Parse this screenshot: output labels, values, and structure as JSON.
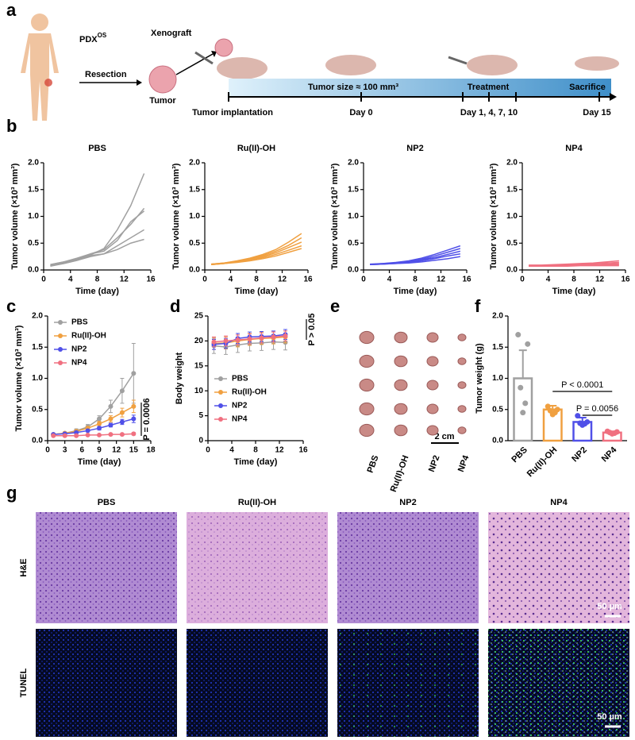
{
  "panels": [
    "a",
    "b",
    "c",
    "d",
    "e",
    "f",
    "g"
  ],
  "schematic": {
    "patient": "PDX",
    "patient_sup": "OS",
    "xenograft": "Xenograft",
    "resection": "Resection",
    "tumor": "Tumor",
    "banner": "Tumor size ≈ 100 mm³",
    "treatment": "Treatment",
    "sacrifice": "Sacrifice",
    "timeline": [
      "Tumor implantation",
      "Day 0",
      "Day 1, 4, 7, 10",
      "Day 15"
    ]
  },
  "chart_data": [
    {
      "type": "line",
      "title": "PBS",
      "xlabel": "Time (day)",
      "ylabel": "Tumor volume (×10³ mm³)",
      "x": [
        1,
        3,
        5,
        7,
        9,
        11,
        13,
        15
      ],
      "xlim": [
        0,
        16
      ],
      "xticks": [
        0,
        4,
        8,
        12,
        16
      ],
      "ylim": [
        0,
        2
      ],
      "yticks": [
        {
          "value": 0,
          "label": "0.0"
        },
        0.5,
        {
          "value": 1,
          "label": "1.0"
        },
        1.5,
        {
          "value": 2,
          "label": "2.0"
        }
      ],
      "series": [
        {
          "color": "#a0a0a0",
          "values": [
            0.1,
            0.15,
            0.2,
            0.28,
            0.4,
            0.75,
            1.2,
            1.8
          ]
        },
        {
          "color": "#a0a0a0",
          "values": [
            0.08,
            0.13,
            0.2,
            0.3,
            0.38,
            0.6,
            0.85,
            1.15
          ]
        },
        {
          "color": "#a0a0a0",
          "values": [
            0.1,
            0.15,
            0.22,
            0.3,
            0.35,
            0.55,
            0.9,
            1.1
          ]
        },
        {
          "color": "#a0a0a0",
          "values": [
            0.07,
            0.12,
            0.18,
            0.27,
            0.3,
            0.45,
            0.6,
            0.75
          ]
        },
        {
          "color": "#a0a0a0",
          "values": [
            0.08,
            0.12,
            0.18,
            0.25,
            0.3,
            0.38,
            0.5,
            0.57
          ]
        }
      ]
    },
    {
      "type": "line",
      "title": "Ru(II)-OH",
      "xlabel": "Time (day)",
      "ylabel": "Tumor volume (×10³ mm³)",
      "x": [
        1,
        3,
        5,
        7,
        9,
        11,
        13,
        15
      ],
      "xlim": [
        0,
        16
      ],
      "xticks": [
        0,
        4,
        8,
        12,
        16
      ],
      "ylim": [
        0,
        2
      ],
      "yticks": [
        {
          "value": 0,
          "label": "0.0"
        },
        0.5,
        {
          "value": 1,
          "label": "1.0"
        },
        1.5,
        {
          "value": 2,
          "label": "2.0"
        }
      ],
      "series": [
        {
          "color": "#f0a040",
          "values": [
            0.11,
            0.13,
            0.17,
            0.22,
            0.29,
            0.38,
            0.52,
            0.68
          ]
        },
        {
          "color": "#f0a040",
          "values": [
            0.1,
            0.12,
            0.16,
            0.21,
            0.27,
            0.35,
            0.46,
            0.6
          ]
        },
        {
          "color": "#f0a040",
          "values": [
            0.11,
            0.13,
            0.16,
            0.2,
            0.25,
            0.32,
            0.42,
            0.52
          ]
        },
        {
          "color": "#f0a040",
          "values": [
            0.1,
            0.12,
            0.15,
            0.19,
            0.23,
            0.29,
            0.37,
            0.45
          ]
        },
        {
          "color": "#f0a040",
          "values": [
            0.1,
            0.12,
            0.14,
            0.17,
            0.21,
            0.26,
            0.33,
            0.4
          ]
        }
      ]
    },
    {
      "type": "line",
      "title": "NP2",
      "xlabel": "Time (day)",
      "ylabel": "Tumor volume (×10³ mm³)",
      "x": [
        1,
        3,
        5,
        7,
        9,
        11,
        13,
        15
      ],
      "xlim": [
        0,
        16
      ],
      "xticks": [
        0,
        4,
        8,
        12,
        16
      ],
      "ylim": [
        0,
        2
      ],
      "yticks": [
        {
          "value": 0,
          "label": "0.0"
        },
        0.5,
        {
          "value": 1,
          "label": "1.0"
        },
        1.5,
        {
          "value": 2,
          "label": "2.0"
        }
      ],
      "series": [
        {
          "color": "#5050e8",
          "values": [
            0.11,
            0.12,
            0.14,
            0.17,
            0.22,
            0.29,
            0.37,
            0.45
          ]
        },
        {
          "color": "#5050e8",
          "values": [
            0.1,
            0.12,
            0.13,
            0.16,
            0.2,
            0.26,
            0.33,
            0.4
          ]
        },
        {
          "color": "#5050e8",
          "values": [
            0.1,
            0.11,
            0.13,
            0.15,
            0.19,
            0.23,
            0.29,
            0.35
          ]
        },
        {
          "color": "#5050e8",
          "values": [
            0.1,
            0.11,
            0.12,
            0.14,
            0.17,
            0.21,
            0.26,
            0.3
          ]
        },
        {
          "color": "#5050e8",
          "values": [
            0.1,
            0.11,
            0.12,
            0.13,
            0.15,
            0.18,
            0.21,
            0.25
          ]
        }
      ]
    },
    {
      "type": "line",
      "title": "NP4",
      "xlabel": "Time (day)",
      "ylabel": "Tumor volume (×10³ mm³)",
      "x": [
        1,
        3,
        5,
        7,
        9,
        11,
        13,
        15
      ],
      "xlim": [
        0,
        16
      ],
      "xticks": [
        0,
        4,
        8,
        12,
        16
      ],
      "ylim": [
        0,
        2
      ],
      "yticks": [
        {
          "value": 0,
          "label": "0.0"
        },
        0.5,
        {
          "value": 1,
          "label": "1.0"
        },
        1.5,
        {
          "value": 2,
          "label": "2.0"
        }
      ],
      "series": [
        {
          "color": "#f07080",
          "values": [
            0.09,
            0.09,
            0.1,
            0.11,
            0.12,
            0.13,
            0.15,
            0.17
          ]
        },
        {
          "color": "#f07080",
          "values": [
            0.08,
            0.08,
            0.09,
            0.1,
            0.11,
            0.12,
            0.13,
            0.14
          ]
        },
        {
          "color": "#f07080",
          "values": [
            0.08,
            0.08,
            0.08,
            0.09,
            0.1,
            0.1,
            0.11,
            0.12
          ]
        },
        {
          "color": "#f07080",
          "values": [
            0.07,
            0.07,
            0.08,
            0.08,
            0.09,
            0.09,
            0.1,
            0.1
          ]
        },
        {
          "color": "#f07080",
          "values": [
            0.07,
            0.07,
            0.07,
            0.07,
            0.08,
            0.08,
            0.08,
            0.08
          ]
        }
      ]
    },
    {
      "type": "line",
      "xlabel": "Time (day)",
      "ylabel": "Tumor volume (×10³ mm³)",
      "markers": true,
      "legend": "upper left",
      "annotations": [
        "P = 0.0006"
      ],
      "x": [
        1,
        3,
        5,
        7,
        9,
        11,
        13,
        15
      ],
      "xlim": [
        0,
        18
      ],
      "xticks": [
        0,
        3,
        6,
        9,
        12,
        15,
        18
      ],
      "ylim": [
        0,
        2
      ],
      "yticks": [
        {
          "value": 0,
          "label": "0.0"
        },
        0.5,
        {
          "value": 1,
          "label": "1.0"
        },
        1.5,
        {
          "value": 2,
          "label": "2.0"
        }
      ],
      "series": [
        {
          "name": "PBS",
          "color": "#a0a0a0",
          "values": [
            0.1,
            0.12,
            0.16,
            0.22,
            0.35,
            0.55,
            0.8,
            1.08
          ],
          "errors": [
            0.02,
            0.02,
            0.03,
            0.04,
            0.05,
            0.1,
            0.2,
            0.48
          ]
        },
        {
          "name": "Ru(II)-OH",
          "color": "#f0a040",
          "values": [
            0.1,
            0.12,
            0.15,
            0.2,
            0.27,
            0.35,
            0.45,
            0.55
          ],
          "errors": [
            0.01,
            0.02,
            0.02,
            0.03,
            0.04,
            0.05,
            0.07,
            0.1
          ]
        },
        {
          "name": "NP2",
          "color": "#5050e8",
          "values": [
            0.1,
            0.11,
            0.13,
            0.16,
            0.2,
            0.25,
            0.3,
            0.35
          ],
          "errors": [
            0.01,
            0.01,
            0.02,
            0.02,
            0.03,
            0.03,
            0.04,
            0.06
          ]
        },
        {
          "name": "NP4",
          "color": "#f07080",
          "values": [
            0.08,
            0.08,
            0.08,
            0.09,
            0.09,
            0.1,
            0.1,
            0.11
          ],
          "errors": [
            0.01,
            0.01,
            0.01,
            0.01,
            0.01,
            0.01,
            0.01,
            0.02
          ]
        }
      ]
    },
    {
      "type": "line",
      "xlabel": "Time (day)",
      "ylabel": "Body weight",
      "markers": true,
      "legend": "lower left",
      "annotations": [
        "P > 0.05"
      ],
      "x": [
        1,
        3,
        5,
        7,
        9,
        11,
        13
      ],
      "xlim": [
        0,
        16
      ],
      "xticks": [
        0,
        4,
        8,
        12,
        16
      ],
      "ylim": [
        0,
        25
      ],
      "yticks": [
        0,
        5,
        10,
        15,
        20,
        25
      ],
      "series": [
        {
          "name": "PBS",
          "color": "#a0a0a0",
          "values": [
            19,
            18.8,
            19.2,
            19.5,
            19.6,
            19.8,
            19.7
          ],
          "errors": [
            1.5,
            1.5,
            1.5,
            1.5,
            1.5,
            1.5,
            1.5
          ]
        },
        {
          "name": "Ru(II)-OH",
          "color": "#f0a040",
          "values": [
            19.5,
            19.6,
            20,
            20.3,
            20.5,
            20.6,
            20.8
          ],
          "errors": [
            1.2,
            1.2,
            1.2,
            1.2,
            1.2,
            1.2,
            1.2
          ]
        },
        {
          "name": "NP2",
          "color": "#5050e8",
          "values": [
            19.3,
            19.5,
            20.5,
            20.8,
            20.9,
            21,
            21.3
          ],
          "errors": [
            1,
            1,
            1,
            1,
            1,
            1,
            1
          ]
        },
        {
          "name": "NP4",
          "color": "#f07080",
          "values": [
            19.8,
            20,
            20.2,
            20.4,
            20.6,
            20.8,
            21
          ],
          "errors": [
            1,
            1,
            1,
            1,
            1,
            1,
            1
          ]
        }
      ]
    },
    {
      "type": "bar",
      "ylabel": "Tumor weight (g)",
      "categories": [
        "PBS",
        "Ru(II)-OH",
        "NP2",
        "NP4"
      ],
      "values": [
        1.0,
        0.5,
        0.3,
        0.13
      ],
      "errors": [
        0.45,
        0.06,
        0.07,
        0.02
      ],
      "points": [
        [
          1.7,
          1.55,
          0.85,
          0.6,
          0.45
        ],
        [
          0.55,
          0.5,
          0.48,
          0.45,
          0.42
        ],
        [
          0.4,
          0.3,
          0.28,
          0.27,
          0.25
        ],
        [
          0.15,
          0.14,
          0.13,
          0.12,
          0.11
        ]
      ],
      "colors": [
        "#a0a0a0",
        "#f0a040",
        "#5050e8",
        "#f07080"
      ],
      "annotations": [
        "P < 0.0001",
        "P = 0.0056"
      ],
      "ylim": [
        0,
        2
      ],
      "yticks": [
        {
          "value": 0,
          "label": "0.0"
        },
        0.5,
        {
          "value": 1,
          "label": "1.0"
        },
        1.5,
        {
          "value": 2,
          "label": "2.0"
        }
      ]
    }
  ],
  "photo": {
    "groups": [
      "PBS",
      "Ru(II)-OH",
      "NP2",
      "NP4"
    ],
    "scale_bar": "2 cm"
  },
  "histology": {
    "columns": [
      "PBS",
      "Ru(II)-OH",
      "NP2",
      "NP4"
    ],
    "rows": [
      "H&E",
      "TUNEL"
    ],
    "scale_bar": "50 µm"
  }
}
